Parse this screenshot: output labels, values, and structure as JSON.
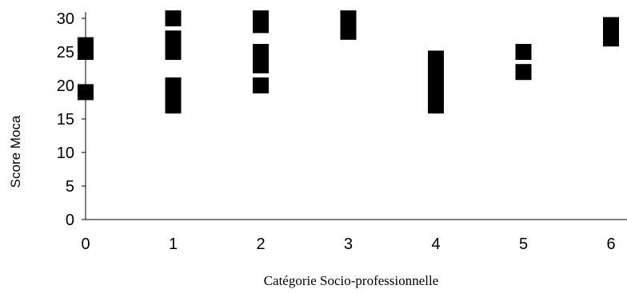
{
  "chart_data": {
    "type": "scatter",
    "title": "",
    "xlabel": "Catégorie Socio-professionnelle",
    "ylabel": "Score Moca",
    "xlim": [
      0,
      6
    ],
    "ylim": [
      0,
      30
    ],
    "x_ticks": [
      0,
      1,
      2,
      3,
      4,
      5,
      6
    ],
    "y_ticks": [
      0,
      5,
      10,
      15,
      20,
      25,
      30
    ],
    "grid": false,
    "legend": "none",
    "marker": "square",
    "marker_color": "#000000",
    "series": [
      {
        "points": [
          {
            "x": 0,
            "y": 25
          },
          {
            "x": 0,
            "y": 26
          },
          {
            "x": 0,
            "y": 19
          },
          {
            "x": 1,
            "y": 30
          },
          {
            "x": 1,
            "y": 27
          },
          {
            "x": 1,
            "y": 26
          },
          {
            "x": 1,
            "y": 25
          },
          {
            "x": 1,
            "y": 20
          },
          {
            "x": 1,
            "y": 19
          },
          {
            "x": 1,
            "y": 18
          },
          {
            "x": 1,
            "y": 17
          },
          {
            "x": 2,
            "y": 30
          },
          {
            "x": 2,
            "y": 29
          },
          {
            "x": 2,
            "y": 25
          },
          {
            "x": 2,
            "y": 24
          },
          {
            "x": 2,
            "y": 23
          },
          {
            "x": 2,
            "y": 20
          },
          {
            "x": 3,
            "y": 30
          },
          {
            "x": 3,
            "y": 29
          },
          {
            "x": 3,
            "y": 28
          },
          {
            "x": 4,
            "y": 24
          },
          {
            "x": 4,
            "y": 23
          },
          {
            "x": 4,
            "y": 22
          },
          {
            "x": 4,
            "y": 21
          },
          {
            "x": 4,
            "y": 20
          },
          {
            "x": 4,
            "y": 19
          },
          {
            "x": 4,
            "y": 18
          },
          {
            "x": 4,
            "y": 17
          },
          {
            "x": 5,
            "y": 25
          },
          {
            "x": 5,
            "y": 22
          },
          {
            "x": 6,
            "y": 29
          },
          {
            "x": 6,
            "y": 27
          }
        ]
      }
    ]
  }
}
